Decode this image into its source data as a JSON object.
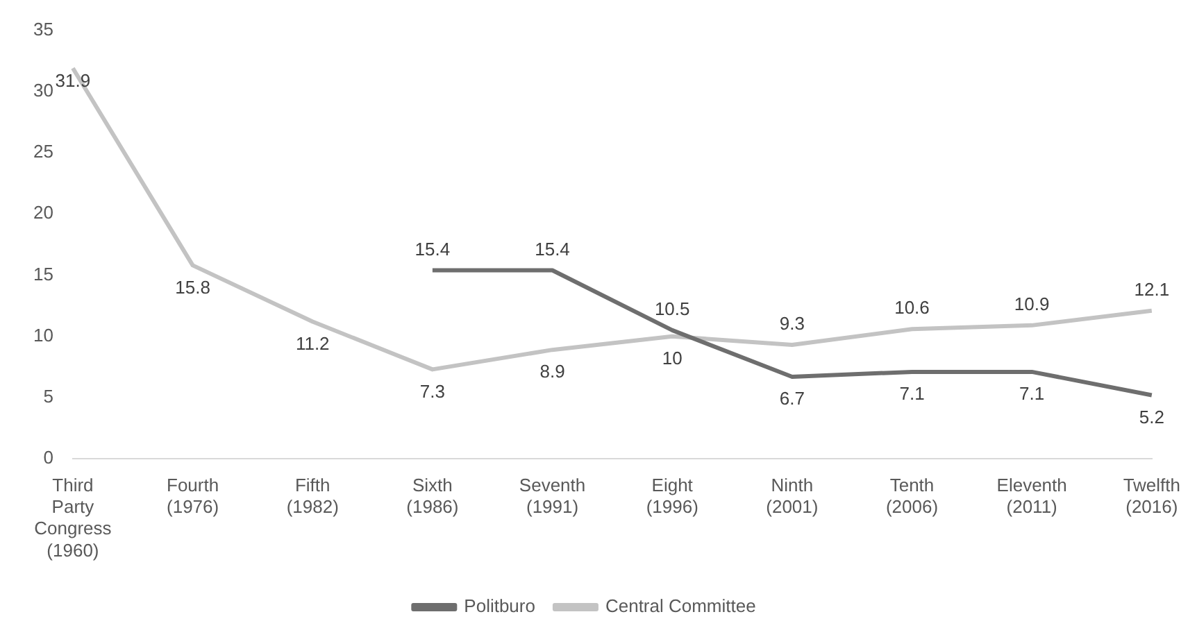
{
  "chart_data": {
    "type": "line",
    "categories": [
      "Third Party Congress (1960)",
      "Fourth (1976)",
      "Fifth (1982)",
      "Sixth (1986)",
      "Seventh (1991)",
      "Eight (1996)",
      "Ninth (2001)",
      "Tenth (2006)",
      "Eleventh (2011)",
      "Twelfth (2016)"
    ],
    "series": [
      {
        "name": "Politburo",
        "color": "#6e6e6e",
        "values": [
          null,
          null,
          null,
          15.4,
          15.4,
          10.5,
          6.7,
          7.1,
          7.1,
          5.2
        ]
      },
      {
        "name": "Central Committee",
        "color": "#c3c3c3",
        "values": [
          31.9,
          15.8,
          11.2,
          7.3,
          8.9,
          10,
          9.3,
          10.6,
          10.9,
          12.1
        ]
      }
    ],
    "ylim": [
      0,
      35
    ],
    "yticks": [
      0,
      5,
      10,
      15,
      20,
      25,
      30,
      35
    ],
    "grid": false,
    "legend": "bottom",
    "data_labels": true,
    "marker": "none",
    "line_style": "solid"
  }
}
